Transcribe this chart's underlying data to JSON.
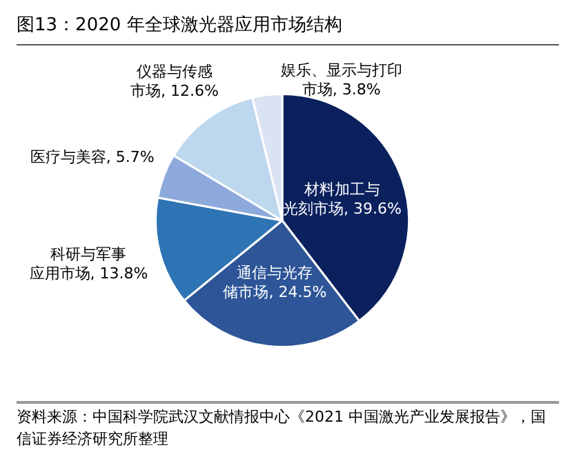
{
  "chart_data": {
    "type": "pie",
    "title": "图13：2020 年全球激光器应用市场结构",
    "categories": [
      "材料加工与光刻市场",
      "通信与光存储市场",
      "科研与军事应用市场",
      "医疗与美容",
      "仪器与传感市场",
      "娱乐、显示与打印市场"
    ],
    "values": [
      39.6,
      24.5,
      13.8,
      5.7,
      12.6,
      3.8
    ],
    "value_labels": [
      "39.6%",
      "24.5%",
      "13.8%",
      "5.7%",
      "12.6%",
      "3.8%"
    ],
    "colors": [
      "#0b215e",
      "#2d5597",
      "#2e74b5",
      "#8eaadc",
      "#bdd7ee",
      "#dae3f3"
    ],
    "legend": false,
    "annotations": [
      "资料来源：中国科学院武汉文献情报中心《2021 中国激光产业发展报告》，国信证券经济研究所整理"
    ]
  }
}
